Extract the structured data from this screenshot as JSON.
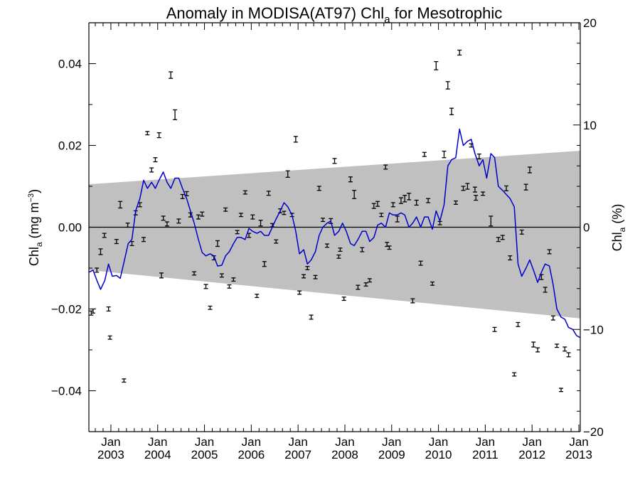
{
  "chart_data": {
    "type": "line",
    "title_prefix": "Anomaly in MODISA(AT97) Chl",
    "title_sub": "a",
    "title_suffix": " for Mesotrophic",
    "ylabel_left": {
      "main": "Chl",
      "sub": "a",
      "rest": " (mg m",
      "sup": "−3",
      "close": ")"
    },
    "ylabel_right": {
      "main": "Chl",
      "sub": "a",
      "rest": " (%)"
    },
    "xlim": [
      2002.53,
      2013.03
    ],
    "ylim": [
      -0.05,
      0.05
    ],
    "ylim_right": [
      -20,
      20
    ],
    "x_ticks": [
      {
        "x": 2003.0,
        "month": "Jan",
        "year": "2003"
      },
      {
        "x": 2004.0,
        "month": "Jan",
        "year": "2004"
      },
      {
        "x": 2005.0,
        "month": "Jan",
        "year": "2005"
      },
      {
        "x": 2006.0,
        "month": "Jan",
        "year": "2006"
      },
      {
        "x": 2007.0,
        "month": "Jan",
        "year": "2007"
      },
      {
        "x": 2008.0,
        "month": "Jan",
        "year": "2008"
      },
      {
        "x": 2009.0,
        "month": "Jan",
        "year": "2009"
      },
      {
        "x": 2010.0,
        "month": "Jan",
        "year": "2010"
      },
      {
        "x": 2011.0,
        "month": "Jan",
        "year": "2011"
      },
      {
        "x": 2012.0,
        "month": "Jan",
        "year": "2012"
      },
      {
        "x": 2013.0,
        "month": "Jan",
        "year": "2013"
      }
    ],
    "y_ticks_left": [
      {
        "v": 0.04,
        "label": "0.04"
      },
      {
        "v": 0.02,
        "label": "0.02"
      },
      {
        "v": 0.0,
        "label": "0.00"
      },
      {
        "v": -0.02,
        "label": "−0.02"
      },
      {
        "v": -0.04,
        "label": "−0.04"
      }
    ],
    "y_ticks_right": [
      {
        "v": 20,
        "label": "20"
      },
      {
        "v": 10,
        "label": "10"
      },
      {
        "v": 0,
        "label": "0"
      },
      {
        "v": -10,
        "label": "−10"
      },
      {
        "v": -20,
        "label": "−20"
      }
    ],
    "band": {
      "x": [
        2002.53,
        2013.03
      ],
      "upper": [
        0.0105,
        0.0187
      ],
      "lower": [
        -0.0105,
        -0.0223
      ],
      "color": "#c0c0c0"
    },
    "zero_line": 0,
    "series": [
      {
        "kind": "line",
        "color": "#0000cc",
        "x": [
          2002.53,
          2002.62,
          2002.7,
          2002.78,
          2002.87,
          2002.95,
          2003.03,
          2003.12,
          2003.2,
          2003.28,
          2003.37,
          2003.45,
          2003.53,
          2003.62,
          2003.7,
          2003.78,
          2003.87,
          2003.95,
          2004.03,
          2004.12,
          2004.2,
          2004.28,
          2004.37,
          2004.45,
          2004.53,
          2004.62,
          2004.7,
          2004.78,
          2004.87,
          2004.95,
          2005.03,
          2005.12,
          2005.2,
          2005.28,
          2005.37,
          2005.45,
          2005.53,
          2005.62,
          2005.7,
          2005.78,
          2005.87,
          2005.95,
          2006.03,
          2006.12,
          2006.2,
          2006.28,
          2006.37,
          2006.45,
          2006.53,
          2006.62,
          2006.7,
          2006.78,
          2006.87,
          2006.95,
          2007.03,
          2007.12,
          2007.2,
          2007.28,
          2007.37,
          2007.45,
          2007.53,
          2007.62,
          2007.7,
          2007.78,
          2007.87,
          2007.95,
          2008.03,
          2008.12,
          2008.2,
          2008.28,
          2008.37,
          2008.45,
          2008.53,
          2008.62,
          2008.7,
          2008.78,
          2008.87,
          2008.95,
          2009.03,
          2009.12,
          2009.2,
          2009.28,
          2009.37,
          2009.45,
          2009.53,
          2009.62,
          2009.7,
          2009.78,
          2009.87,
          2009.95,
          2010.03,
          2010.12,
          2010.2,
          2010.28,
          2010.37,
          2010.45,
          2010.53,
          2010.62,
          2010.7,
          2010.78,
          2010.87,
          2010.95,
          2011.03,
          2011.12,
          2011.2,
          2011.28,
          2011.37,
          2011.45,
          2011.53,
          2011.62,
          2011.7,
          2011.78,
          2011.87,
          2011.95,
          2012.03,
          2012.12,
          2012.2,
          2012.28,
          2012.37,
          2012.45,
          2012.53,
          2012.62,
          2012.7,
          2012.78,
          2012.87,
          2012.95,
          2013.03
        ],
        "y": [
          -0.011,
          -0.0105,
          -0.013,
          -0.0152,
          -0.013,
          -0.009,
          -0.012,
          -0.0118,
          -0.0125,
          -0.0085,
          -0.004,
          -0.003,
          0.004,
          0.007,
          0.0115,
          0.0095,
          0.011,
          0.0095,
          0.0115,
          0.0135,
          0.011,
          0.0095,
          0.012,
          0.012,
          0.0095,
          0.007,
          0.004,
          0.001,
          -0.003,
          -0.0062,
          -0.007,
          -0.0065,
          -0.007,
          -0.0095,
          -0.0093,
          -0.007,
          -0.006,
          -0.004,
          -0.0025,
          -0.0025,
          -0.003,
          -0.0003,
          -0.001,
          -0.0015,
          -0.001,
          -0.002,
          -0.002,
          0.0,
          0.002,
          0.004,
          0.006,
          0.005,
          0.003,
          -0.001,
          -0.0065,
          -0.0055,
          -0.009,
          -0.008,
          -0.006,
          -0.002,
          0.0,
          0.001,
          0.0015,
          -0.002,
          -0.001,
          0.001,
          -0.001,
          -0.004,
          -0.0045,
          -0.003,
          -0.001,
          -0.001,
          -0.0035,
          -0.0025,
          0.0005,
          0.001,
          0.0,
          0.0035,
          0.003,
          0.003,
          0.0035,
          0.003,
          0.0,
          0.001,
          0.0025,
          0.0,
          0.0025,
          0.0025,
          -0.0005,
          0.004,
          0.0015,
          0.0055,
          0.015,
          0.0165,
          0.017,
          0.024,
          0.02,
          0.021,
          0.0215,
          0.018,
          0.015,
          0.0165,
          0.012,
          0.018,
          0.017,
          0.01,
          0.009,
          0.008,
          0.007,
          0.005,
          -0.009,
          -0.012,
          -0.01,
          -0.008,
          -0.0105,
          -0.0135,
          -0.011,
          -0.009,
          -0.0095,
          -0.014,
          -0.02,
          -0.022,
          -0.0225,
          -0.0245,
          -0.025,
          -0.0265,
          -0.027
        ]
      },
      {
        "kind": "errorbar",
        "color": "#000000",
        "points": [
          {
            "x": 2002.58,
            "y": -0.021,
            "e": 0.0005
          },
          {
            "x": 2002.62,
            "y": -0.0205,
            "e": 0.0005
          },
          {
            "x": 2002.7,
            "y": -0.0105,
            "e": 0.0005
          },
          {
            "x": 2002.78,
            "y": -0.006,
            "e": 0.0007
          },
          {
            "x": 2002.86,
            "y": -0.002,
            "e": 0.0005
          },
          {
            "x": 2002.95,
            "y": -0.02,
            "e": 0.0005
          },
          {
            "x": 2002.98,
            "y": -0.027,
            "e": 0.0004
          },
          {
            "x": 2003.12,
            "y": -0.0035,
            "e": 0.0005
          },
          {
            "x": 2003.2,
            "y": 0.0055,
            "e": 0.0008
          },
          {
            "x": 2003.28,
            "y": -0.0375,
            "e": 0.0004
          },
          {
            "x": 2003.36,
            "y": 0.0005,
            "e": 0.0005
          },
          {
            "x": 2003.45,
            "y": -0.004,
            "e": 0.0005
          },
          {
            "x": 2003.53,
            "y": 0.0035,
            "e": 0.0005
          },
          {
            "x": 2003.62,
            "y": 0.0055,
            "e": 0.0005
          },
          {
            "x": 2003.7,
            "y": -0.003,
            "e": 0.0005
          },
          {
            "x": 2003.78,
            "y": 0.023,
            "e": 0.0004
          },
          {
            "x": 2003.87,
            "y": 0.014,
            "e": 0.0005
          },
          {
            "x": 2003.95,
            "y": 0.0165,
            "e": 0.0005
          },
          {
            "x": 2004.03,
            "y": 0.0225,
            "e": 0.0006
          },
          {
            "x": 2004.08,
            "y": -0.0118,
            "e": 0.0006
          },
          {
            "x": 2004.12,
            "y": 0.0022,
            "e": 0.0005
          },
          {
            "x": 2004.2,
            "y": 0.0008,
            "e": 0.0005
          },
          {
            "x": 2004.28,
            "y": 0.0372,
            "e": 0.0008
          },
          {
            "x": 2004.37,
            "y": 0.0275,
            "e": 0.0012
          },
          {
            "x": 2004.45,
            "y": 0.0015,
            "e": 0.0005
          },
          {
            "x": 2004.53,
            "y": 0.0075,
            "e": 0.0005
          },
          {
            "x": 2004.62,
            "y": 0.0082,
            "e": 0.0005
          },
          {
            "x": 2004.7,
            "y": 0.003,
            "e": 0.0005
          },
          {
            "x": 2004.78,
            "y": -0.0113,
            "e": 0.0004
          },
          {
            "x": 2004.87,
            "y": 0.0025,
            "e": 0.0005
          },
          {
            "x": 2004.95,
            "y": 0.0032,
            "e": 0.0005
          },
          {
            "x": 2005.03,
            "y": -0.0145,
            "e": 0.0005
          },
          {
            "x": 2005.12,
            "y": -0.0197,
            "e": 0.0004
          },
          {
            "x": 2005.2,
            "y": -0.0075,
            "e": 0.0005
          },
          {
            "x": 2005.28,
            "y": -0.004,
            "e": 0.0007
          },
          {
            "x": 2005.37,
            "y": -0.0118,
            "e": 0.0004
          },
          {
            "x": 2005.45,
            "y": 0.0043,
            "e": 0.0004
          },
          {
            "x": 2005.53,
            "y": -0.0145,
            "e": 0.0004
          },
          {
            "x": 2005.62,
            "y": -0.0128,
            "e": 0.0004
          },
          {
            "x": 2005.7,
            "y": -0.0012,
            "e": 0.0004
          },
          {
            "x": 2005.78,
            "y": 0.003,
            "e": 0.0004
          },
          {
            "x": 2005.87,
            "y": 0.0085,
            "e": 0.0004
          },
          {
            "x": 2005.95,
            "y": -0.002,
            "e": 0.0005
          },
          {
            "x": 2006.03,
            "y": 0.0025,
            "e": 0.0005
          },
          {
            "x": 2006.12,
            "y": -0.0168,
            "e": 0.0004
          },
          {
            "x": 2006.2,
            "y": 0.001,
            "e": 0.0007
          },
          {
            "x": 2006.28,
            "y": -0.009,
            "e": 0.0006
          },
          {
            "x": 2006.37,
            "y": 0.0083,
            "e": 0.0005
          },
          {
            "x": 2006.45,
            "y": 0.0005,
            "e": 0.0004
          },
          {
            "x": 2006.53,
            "y": -0.0035,
            "e": 0.0004
          },
          {
            "x": 2006.62,
            "y": 0.004,
            "e": 0.0005
          },
          {
            "x": 2006.7,
            "y": 0.0035,
            "e": 0.0004
          },
          {
            "x": 2006.78,
            "y": 0.013,
            "e": 0.0008
          },
          {
            "x": 2006.87,
            "y": 0.003,
            "e": 0.0004
          },
          {
            "x": 2006.95,
            "y": 0.0215,
            "e": 0.0007
          },
          {
            "x": 2007.03,
            "y": -0.016,
            "e": 0.0004
          },
          {
            "x": 2007.12,
            "y": -0.012,
            "e": 0.0004
          },
          {
            "x": 2007.2,
            "y": -0.01,
            "e": 0.0004
          },
          {
            "x": 2007.28,
            "y": -0.022,
            "e": 0.0005
          },
          {
            "x": 2007.37,
            "y": -0.0122,
            "e": 0.0004
          },
          {
            "x": 2007.45,
            "y": 0.0095,
            "e": 0.0005
          },
          {
            "x": 2007.53,
            "y": 0.0018,
            "e": 0.0004
          },
          {
            "x": 2007.62,
            "y": -0.0045,
            "e": 0.0004
          },
          {
            "x": 2007.7,
            "y": 0.0015,
            "e": 0.0006
          },
          {
            "x": 2007.78,
            "y": 0.0162,
            "e": 0.0006
          },
          {
            "x": 2007.87,
            "y": -0.0072,
            "e": 0.0004
          },
          {
            "x": 2007.9,
            "y": -0.0055,
            "e": 0.0004
          },
          {
            "x": 2007.98,
            "y": -0.0175,
            "e": 0.0004
          },
          {
            "x": 2008.12,
            "y": 0.0117,
            "e": 0.0006
          },
          {
            "x": 2008.2,
            "y": 0.008,
            "e": 0.001
          },
          {
            "x": 2008.28,
            "y": -0.0147,
            "e": 0.0005
          },
          {
            "x": 2008.37,
            "y": -0.0055,
            "e": 0.0005
          },
          {
            "x": 2008.45,
            "y": -0.014,
            "e": 0.0004
          },
          {
            "x": 2008.53,
            "y": -0.013,
            "e": 0.0004
          },
          {
            "x": 2008.62,
            "y": 0.0052,
            "e": 0.0006
          },
          {
            "x": 2008.7,
            "y": 0.0057,
            "e": 0.0006
          },
          {
            "x": 2008.78,
            "y": 0.003,
            "e": 0.0004
          },
          {
            "x": 2008.87,
            "y": 0.0147,
            "e": 0.0005
          },
          {
            "x": 2008.9,
            "y": -0.0042,
            "e": 0.0005
          },
          {
            "x": 2008.95,
            "y": -0.005,
            "e": 0.0004
          },
          {
            "x": 2009.03,
            "y": 0.0055,
            "e": 0.0005
          },
          {
            "x": 2009.12,
            "y": 0.002,
            "e": 0.0007
          },
          {
            "x": 2009.2,
            "y": 0.0065,
            "e": 0.0007
          },
          {
            "x": 2009.28,
            "y": 0.007,
            "e": 0.0008
          },
          {
            "x": 2009.37,
            "y": 0.0075,
            "e": 0.0008
          },
          {
            "x": 2009.45,
            "y": -0.018,
            "e": 0.0005
          },
          {
            "x": 2009.53,
            "y": 0.006,
            "e": 0.0006
          },
          {
            "x": 2009.62,
            "y": -0.0088,
            "e": 0.0005
          },
          {
            "x": 2009.7,
            "y": 0.0178,
            "e": 0.0005
          },
          {
            "x": 2009.78,
            "y": 0.0065,
            "e": 0.0005
          },
          {
            "x": 2009.87,
            "y": -0.0138,
            "e": 0.0004
          },
          {
            "x": 2009.95,
            "y": 0.0395,
            "e": 0.001
          },
          {
            "x": 2010.03,
            "y": 0.001,
            "e": 0.0004
          },
          {
            "x": 2010.12,
            "y": 0.0178,
            "e": 0.0008
          },
          {
            "x": 2010.2,
            "y": 0.0347,
            "e": 0.0009
          },
          {
            "x": 2010.28,
            "y": 0.0283,
            "e": 0.0008
          },
          {
            "x": 2010.37,
            "y": 0.006,
            "e": 0.0004
          },
          {
            "x": 2010.45,
            "y": 0.0427,
            "e": 0.0006
          },
          {
            "x": 2010.53,
            "y": 0.0095,
            "e": 0.0005
          },
          {
            "x": 2010.62,
            "y": 0.01,
            "e": 0.0007
          },
          {
            "x": 2010.7,
            "y": 0.02,
            "e": 0.0004
          },
          {
            "x": 2010.78,
            "y": 0.0092,
            "e": 0.0006
          },
          {
            "x": 2010.8,
            "y": 0.0072,
            "e": 0.0006
          },
          {
            "x": 2010.87,
            "y": 0.0173,
            "e": 0.0006
          },
          {
            "x": 2010.95,
            "y": 0.0082,
            "e": 0.0004
          },
          {
            "x": 2011.12,
            "y": 0.0015,
            "e": 0.0012
          },
          {
            "x": 2011.2,
            "y": -0.025,
            "e": 0.0005
          },
          {
            "x": 2011.28,
            "y": -0.003,
            "e": 0.0005
          },
          {
            "x": 2011.37,
            "y": -0.0025,
            "e": 0.0005
          },
          {
            "x": 2011.45,
            "y": 0.0095,
            "e": 0.0006
          },
          {
            "x": 2011.53,
            "y": -0.0075,
            "e": 0.0005
          },
          {
            "x": 2011.62,
            "y": -0.036,
            "e": 0.0004
          },
          {
            "x": 2011.7,
            "y": -0.0238,
            "e": 0.0005
          },
          {
            "x": 2011.78,
            "y": -0.0012,
            "e": 0.0005
          },
          {
            "x": 2011.87,
            "y": 0.0098,
            "e": 0.0007
          },
          {
            "x": 2011.95,
            "y": 0.014,
            "e": 0.0007
          },
          {
            "x": 2012.03,
            "y": -0.0287,
            "e": 0.0006
          },
          {
            "x": 2012.12,
            "y": -0.03,
            "e": 0.0005
          },
          {
            "x": 2012.2,
            "y": -0.0122,
            "e": 0.0006
          },
          {
            "x": 2012.28,
            "y": -0.0153,
            "e": 0.0006
          },
          {
            "x": 2012.37,
            "y": -0.006,
            "e": 0.0005
          },
          {
            "x": 2012.45,
            "y": -0.0222,
            "e": 0.0005
          },
          {
            "x": 2012.53,
            "y": -0.029,
            "e": 0.0004
          },
          {
            "x": 2012.62,
            "y": -0.0398,
            "e": 0.0004
          },
          {
            "x": 2012.7,
            "y": -0.0298,
            "e": 0.0005
          },
          {
            "x": 2012.78,
            "y": -0.0312,
            "e": 0.0005
          }
        ]
      }
    ]
  }
}
